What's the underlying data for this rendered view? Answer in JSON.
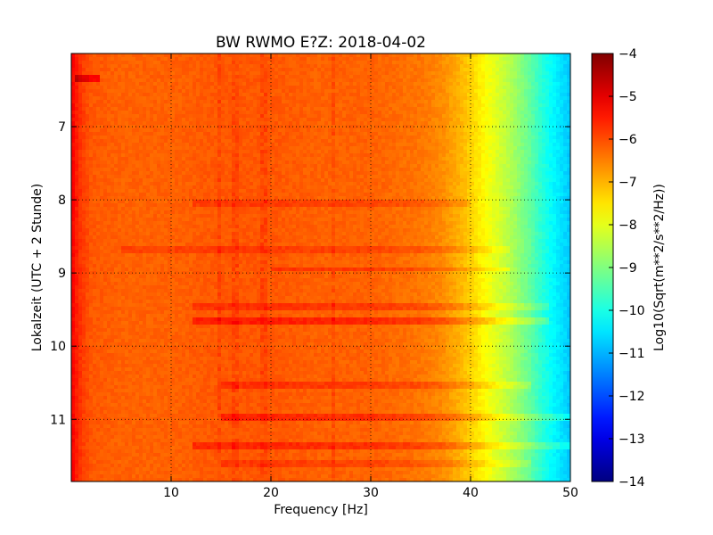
{
  "chart_data": {
    "type": "heatmap",
    "title": "BW RWMO E?Z: 2018-04-02",
    "xlabel": "Frequency [Hz]",
    "ylabel": "Lokalzeit (UTC + 2 Stunde)",
    "xlim": [
      0,
      50
    ],
    "ylim": [
      11.85,
      6.0
    ],
    "y_inverted": true,
    "x_ticks": [
      10,
      20,
      30,
      40,
      50
    ],
    "x_tick_labels": [
      "10",
      "20",
      "30",
      "40",
      "50"
    ],
    "y_ticks": [
      7,
      8,
      9,
      10,
      11
    ],
    "y_tick_labels": [
      "7",
      "8",
      "9",
      "10",
      "11"
    ],
    "grid": true,
    "colormap": "jet",
    "colorbar": {
      "label": "Log10(Sqrt(m**2/s**2/Hz))",
      "vmin": -14,
      "vmax": -4,
      "ticks": [
        -4,
        -5,
        -6,
        -7,
        -8,
        -9,
        -10,
        -11,
        -12,
        -13,
        -14
      ],
      "tick_labels": [
        "−4",
        "−5",
        "−6",
        "−7",
        "−8",
        "−9",
        "−10",
        "−11",
        "−12",
        "−13",
        "−14"
      ]
    },
    "spectrum_profile": {
      "frequency_hz": [
        0,
        0.5,
        1,
        2,
        5,
        10,
        15,
        20,
        25,
        30,
        35,
        37,
        39,
        40,
        41,
        42,
        43,
        44,
        45,
        46,
        47,
        48,
        49,
        50
      ],
      "value": [
        -5.2,
        -5.5,
        -5.8,
        -6.1,
        -6.2,
        -6.2,
        -6.1,
        -6.1,
        -6.2,
        -6.2,
        -6.4,
        -6.6,
        -7.0,
        -7.3,
        -7.6,
        -7.9,
        -8.2,
        -8.5,
        -8.9,
        -9.3,
        -9.8,
        -10.2,
        -10.5,
        -10.8
      ]
    },
    "horizontal_bands": [
      {
        "time_h": 6.35,
        "from_hz": 0.5,
        "to_hz": 3,
        "delta": 0.9
      },
      {
        "time_h": 8.05,
        "from_hz": 12,
        "to_hz": 40,
        "delta": 0.3
      },
      {
        "time_h": 8.7,
        "from_hz": 5,
        "to_hz": 44,
        "delta": 0.3
      },
      {
        "time_h": 8.95,
        "from_hz": 20,
        "to_hz": 44,
        "delta": 0.4
      },
      {
        "time_h": 9.45,
        "from_hz": 12,
        "to_hz": 48,
        "delta": 0.4
      },
      {
        "time_h": 9.65,
        "from_hz": 12,
        "to_hz": 48,
        "delta": 0.6
      },
      {
        "time_h": 10.55,
        "from_hz": 15,
        "to_hz": 46,
        "delta": 0.4
      },
      {
        "time_h": 10.98,
        "from_hz": 15,
        "to_hz": 50,
        "delta": 0.5
      },
      {
        "time_h": 11.37,
        "from_hz": 12,
        "to_hz": 50,
        "delta": 0.5
      },
      {
        "time_h": 11.62,
        "from_hz": 15,
        "to_hz": 46,
        "delta": 0.3
      }
    ],
    "vertical_lines": [
      {
        "freq_hz": 16.5,
        "delta": 0.3
      },
      {
        "freq_hz": 26.3,
        "delta": 0.3
      },
      {
        "freq_hz": 14.8,
        "delta": 0.3
      },
      {
        "freq_hz": 19.3,
        "delta": 0.3
      }
    ]
  }
}
